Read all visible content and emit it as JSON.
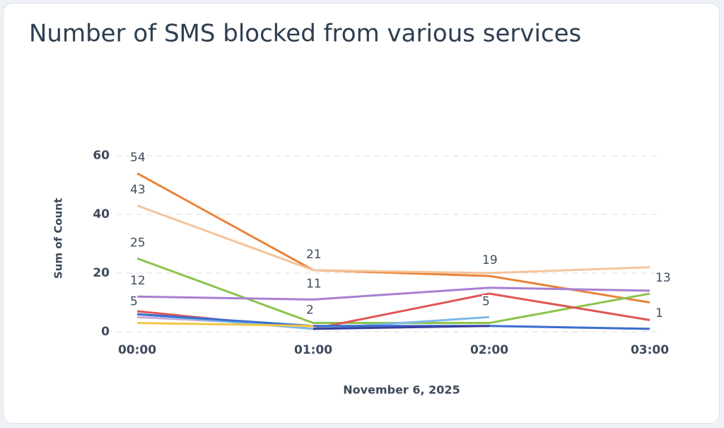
{
  "chart_data": {
    "type": "line",
    "title": "Number of SMS blocked from various services",
    "x_label": "November 6, 2025",
    "y_label": "Sum of Count",
    "categories": [
      "00:00",
      "01:00",
      "02:00",
      "03:00"
    ],
    "ylim": [
      0,
      60
    ],
    "yticks": [
      0,
      20,
      40,
      60
    ],
    "grid": true,
    "series": [
      {
        "color": "#e8843a",
        "values": [
          54,
          21,
          19,
          10
        ],
        "value_labels": [
          "54",
          "21",
          "19",
          null
        ]
      },
      {
        "color": "#f5c49c",
        "values": [
          43,
          21,
          20,
          22
        ],
        "value_labels": [
          "43",
          null,
          null,
          null
        ]
      },
      {
        "color": "#8bc34a",
        "values": [
          25,
          3,
          3,
          13
        ],
        "value_labels": [
          "25",
          null,
          null,
          "13"
        ]
      },
      {
        "color": "#a77fd0",
        "values": [
          12,
          11,
          15,
          14
        ],
        "value_labels": [
          "12",
          "11",
          null,
          null
        ]
      },
      {
        "color": "#c9a9e0",
        "values": [
          5,
          2,
          2,
          1
        ],
        "value_labels": [
          "5",
          "2",
          null,
          "1"
        ]
      },
      {
        "color": "#e05555",
        "values": [
          7,
          1,
          13,
          4
        ]
      },
      {
        "color": "#7fb8e6",
        "values": [
          6,
          1,
          5,
          null
        ],
        "value_labels": [
          null,
          null,
          "5",
          null
        ]
      },
      {
        "color": "#3b6fd1",
        "values": [
          6,
          2,
          2,
          1
        ]
      },
      {
        "color": "#3a3f9e",
        "values": [
          null,
          1,
          2,
          null
        ]
      },
      {
        "color": "#f2c744",
        "values": [
          3,
          2,
          null,
          null
        ]
      }
    ]
  }
}
